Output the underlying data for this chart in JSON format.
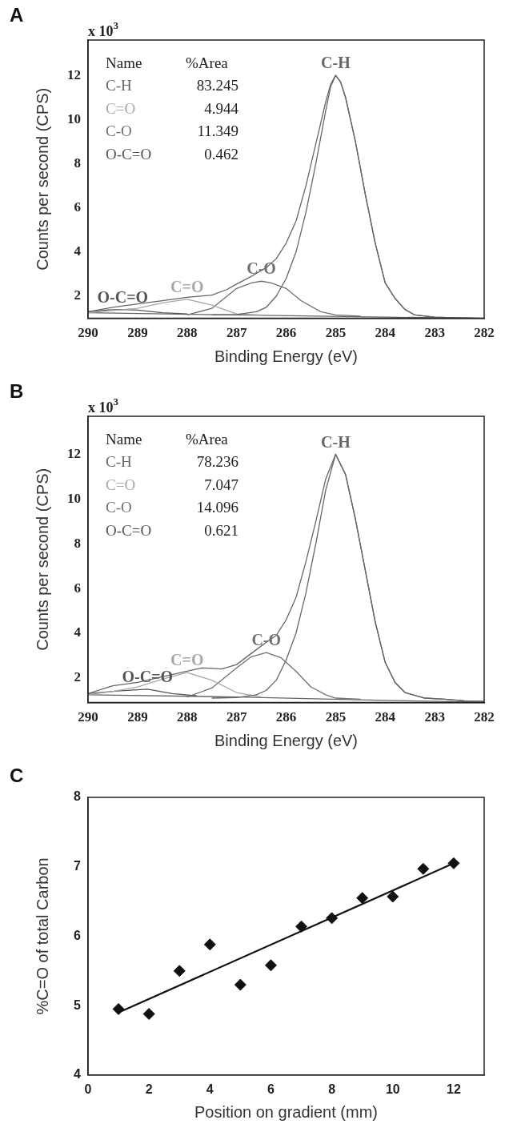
{
  "chart_data": [
    {
      "type": "line",
      "title": "A",
      "xlabel": "Binding Energy (eV)",
      "ylabel": "Counts per second (CPS)",
      "xlim": [
        290,
        282
      ],
      "xticks": [
        290,
        289,
        288,
        287,
        286,
        285,
        284,
        283,
        282
      ],
      "ylim": [
        1,
        13.6
      ],
      "yticks": [
        2,
        4,
        6,
        8,
        10,
        12
      ],
      "marker": "none",
      "annotations": [
        "x 10$^{3}$",
        "Name",
        "%Area",
        "C-H",
        "83.245",
        "C=O",
        "4.944",
        "C-O",
        "11.349",
        "O-C=O",
        "0.462"
      ],
      "series": [
        {
          "color": "#666666",
          "x": [
            290,
            289.5,
            289,
            288.5,
            288,
            287.5,
            287.2,
            287,
            286.7,
            286.4,
            286.2,
            286,
            285.8,
            285.6,
            285.4,
            285.2,
            285.1,
            285,
            284.9,
            284.8,
            284.6,
            284.4,
            284.2,
            284,
            283.8,
            283.6,
            283.4,
            283,
            282.5,
            282
          ],
          "values": [
            1.3,
            1.5,
            1.65,
            1.8,
            1.95,
            2.05,
            2.3,
            2.55,
            2.9,
            3.3,
            3.7,
            4.4,
            5.4,
            7,
            8.9,
            10.8,
            11.6,
            12,
            11.7,
            11,
            9,
            6.6,
            4.4,
            2.6,
            1.9,
            1.4,
            1.15,
            1.05,
            1.02,
            1
          ]
        },
        {
          "name": "C-H",
          "color": "#666666",
          "x": [
            287.5,
            287,
            286.6,
            286.4,
            286.2,
            286,
            285.8,
            285.6,
            285.4,
            285.2,
            285.1,
            285,
            284.9,
            284.8,
            284.6,
            284.4,
            284.2,
            284,
            283.8,
            283.6,
            283.4,
            283,
            282.5,
            282
          ],
          "values": [
            1.15,
            1.17,
            1.3,
            1.5,
            2,
            2.8,
            4,
            5.8,
            8,
            10.4,
            11.5,
            12,
            11.7,
            11,
            9,
            6.6,
            4.4,
            2.6,
            1.9,
            1.4,
            1.15,
            1.05,
            1.02,
            1
          ]
        },
        {
          "name": "C=O",
          "color": "#a8a8a8",
          "x": [
            290,
            289.5,
            289,
            288.5,
            288,
            287.5,
            287,
            286.5
          ],
          "values": [
            1.25,
            1.35,
            1.45,
            1.7,
            1.86,
            1.6,
            1.2,
            1.15
          ]
        },
        {
          "name": "C-O",
          "color": "#707070",
          "x": [
            288,
            287.5,
            287,
            286.7,
            286.5,
            286.3,
            286,
            285.7,
            285.3,
            285,
            284.5
          ],
          "values": [
            1.15,
            1.45,
            2.35,
            2.6,
            2.68,
            2.6,
            2.35,
            1.8,
            1.3,
            1.15,
            1.1
          ]
        },
        {
          "name": "O-C=O",
          "color": "#555555",
          "x": [
            290,
            289.6,
            289.3,
            289,
            288.5,
            288
          ],
          "values": [
            1.3,
            1.38,
            1.4,
            1.37,
            1.25,
            1.2
          ]
        },
        {
          "color": "#666666",
          "x": [
            290,
            287,
            284,
            282
          ],
          "values": [
            1.25,
            1.15,
            1.05,
            1
          ]
        }
      ]
    },
    {
      "type": "line",
      "title": "B",
      "xlabel": "Binding Energy (eV)",
      "ylabel": "Counts per second (CPS)",
      "xlim": [
        290,
        282
      ],
      "xticks": [
        290,
        289,
        288,
        287,
        286,
        285,
        284,
        283,
        282
      ],
      "ylim": [
        0.9,
        13.7
      ],
      "yticks": [
        2,
        4,
        6,
        8,
        10,
        12
      ],
      "marker": "none",
      "annotations": [
        "x 10$^{3}$",
        "Name",
        "%Area",
        "C-H",
        "78.236",
        "C=O",
        "7.047",
        "C-O",
        "14.096",
        "O-C=O",
        "0.621"
      ],
      "series": [
        {
          "color": "#666666",
          "x": [
            290,
            289.5,
            289,
            288.5,
            288,
            287.7,
            287.3,
            287,
            286.7,
            286.4,
            286.2,
            286,
            285.8,
            285.6,
            285.4,
            285.2,
            285,
            284.8,
            284.6,
            284.4,
            284.2,
            284,
            283.8,
            283.6,
            283.2,
            282.8,
            282.4,
            282
          ],
          "values": [
            1.3,
            1.65,
            1.8,
            2.05,
            2.3,
            2.45,
            2.4,
            2.6,
            3.1,
            3.6,
            3.9,
            4.6,
            5.6,
            7.2,
            9,
            10.9,
            12,
            11.1,
            9.1,
            6.8,
            4.5,
            2.7,
            1.8,
            1.35,
            1.1,
            1.05,
            0.98,
            0.95
          ]
        },
        {
          "name": "C-H",
          "color": "#666666",
          "x": [
            287.5,
            287,
            286.6,
            286.4,
            286.2,
            286,
            285.8,
            285.6,
            285.4,
            285.2,
            285,
            284.8,
            284.6,
            284.4,
            284.2,
            284,
            283.8,
            283.6,
            283.2,
            282.8,
            282.4,
            282
          ],
          "values": [
            1.1,
            1.12,
            1.25,
            1.45,
            1.9,
            2.8,
            4,
            5.8,
            8,
            10.4,
            12,
            11.1,
            9.1,
            6.8,
            4.5,
            2.7,
            1.8,
            1.35,
            1.1,
            1.05,
            0.98,
            0.95
          ]
        },
        {
          "name": "C=O",
          "color": "#a8a8a8",
          "x": [
            290,
            289.5,
            289,
            288.5,
            288,
            287.5,
            287,
            286.5
          ],
          "values": [
            1.25,
            1.4,
            1.6,
            1.95,
            2.24,
            1.9,
            1.35,
            1.15
          ]
        },
        {
          "name": "C-O",
          "color": "#707070",
          "x": [
            288,
            287.5,
            287,
            286.7,
            286.4,
            286.1,
            285.8,
            285.5,
            285.2,
            285,
            284.5
          ],
          "values": [
            1.15,
            1.55,
            2.45,
            2.95,
            3.14,
            2.9,
            2.3,
            1.6,
            1.25,
            1.1,
            1.05
          ]
        },
        {
          "name": "O-C=O",
          "color": "#555555",
          "x": [
            290,
            289.4,
            288.8,
            288.3,
            287.8
          ],
          "values": [
            1.3,
            1.42,
            1.5,
            1.3,
            1.2
          ]
        },
        {
          "color": "#666666",
          "x": [
            290,
            287,
            284,
            282
          ],
          "values": [
            1.25,
            1.15,
            1.0,
            0.92
          ]
        }
      ]
    },
    {
      "type": "scatter",
      "title": "C",
      "xlabel": "Position on gradient (mm)",
      "ylabel": "%C=O of total Carbon",
      "xlim": [
        0,
        13
      ],
      "xticks": [
        0,
        2,
        4,
        6,
        8,
        10,
        12
      ],
      "ylim": [
        4,
        8
      ],
      "yticks": [
        4,
        5,
        6,
        7,
        8
      ],
      "marker": "diamond",
      "x": [
        1,
        2,
        3,
        4,
        5,
        6,
        7,
        8,
        9,
        10,
        11,
        12
      ],
      "series": [
        {
          "color": "#111111",
          "values": [
            4.95,
            4.88,
            5.5,
            5.88,
            5.3,
            5.58,
            6.14,
            6.26,
            6.55,
            6.57,
            6.97,
            7.05
          ]
        },
        {
          "type": "line",
          "marker": "none",
          "color": "#111111",
          "x": [
            1,
            12
          ],
          "values": [
            4.9,
            7.05
          ]
        }
      ]
    }
  ]
}
